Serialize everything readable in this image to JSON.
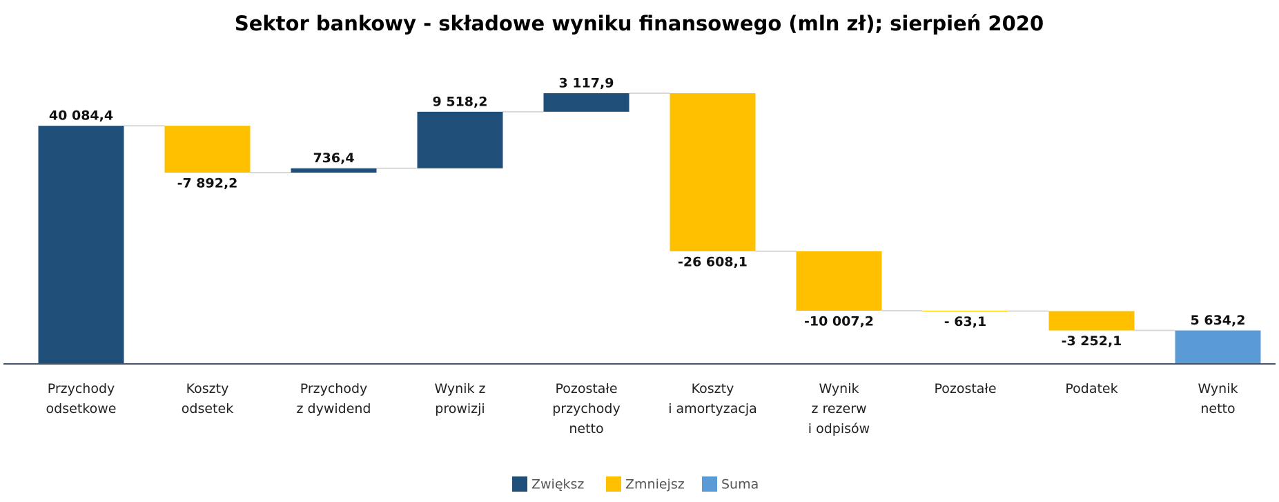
{
  "chart_data": {
    "type": "waterfall",
    "title": "Sektor bankowy - składowe wyniku finansowego (mln zł); sierpień 2020",
    "categories": [
      "Przychody\nodsetkowe",
      "Koszty\nodsetek",
      "Przychody\nz dywidend",
      "Wynik z\nprowizji",
      "Pozostałe\nprzychody\nnetto",
      "Koszty\ni amortyzacja",
      "Wynik\nz rezerw\ni odpisów",
      "Pozostałe",
      "Podatek",
      "Wynik\nnetto"
    ],
    "values": [
      40084.4,
      -7892.2,
      736.4,
      9518.2,
      3117.9,
      -26608.1,
      -10007.2,
      -63.1,
      -3252.1,
      5634.2
    ],
    "value_labels": [
      "40 084,4",
      "-7 892,2",
      "736,4",
      "9 518,2",
      "3 117,9",
      "-26 608,1",
      "-10 007,2",
      "- 63,1",
      "-3 252,1",
      "5 634,2"
    ],
    "bar_kinds": [
      0,
      1,
      0,
      0,
      0,
      1,
      1,
      1,
      1,
      2
    ],
    "series": [
      {
        "name": "Zwiększ",
        "color": "#1f4e79"
      },
      {
        "name": "Zmniejsz",
        "color": "#ffc000"
      },
      {
        "name": "Suma",
        "color": "#5b9bd5"
      }
    ]
  }
}
